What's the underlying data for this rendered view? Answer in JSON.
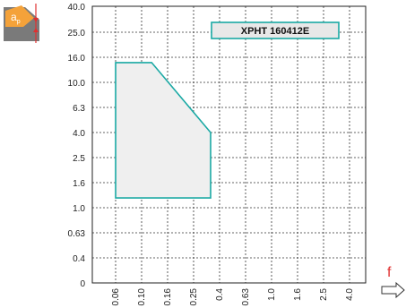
{
  "chart_data": {
    "type": "area",
    "title": "",
    "badge": "XPHT 160412E",
    "xlabel": "f",
    "ylabel_symbol": "a",
    "ylabel_subscript": "p",
    "x_ticks": [
      "0.06",
      "0.10",
      "0.16",
      "0.25",
      "0.4",
      "0.63",
      "1.0",
      "1.6",
      "2.5",
      "4.0"
    ],
    "y_ticks": [
      "40.0",
      "25.0",
      "16.0",
      "10.0",
      "6.3",
      "4.0",
      "2.5",
      "1.6",
      "1.0",
      "0.63",
      "0.4",
      "0"
    ],
    "x_scale": "log",
    "y_scale": "log",
    "grid": true,
    "series": [
      {
        "region": [
          {
            "x": 0.06,
            "y": 14.5
          },
          {
            "x": 0.12,
            "y": 14.5
          },
          {
            "x": 0.34,
            "y": 4.0
          },
          {
            "x": 0.34,
            "y": 1.2
          },
          {
            "x": 0.06,
            "y": 1.2
          }
        ]
      }
    ],
    "colors": {
      "region_stroke": "#1aa9a4",
      "region_fill": "#efefef",
      "icon_orange": "#f4a23a",
      "icon_arrow": "#e03030"
    }
  }
}
